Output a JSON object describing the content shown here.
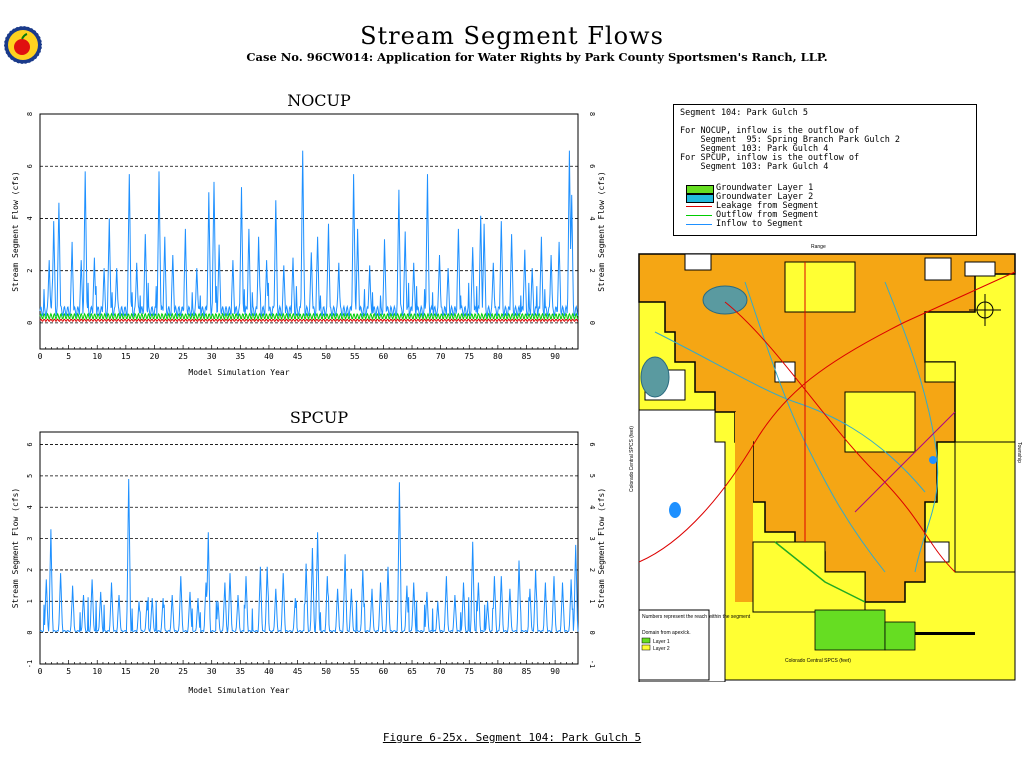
{
  "header": {
    "title": "Stream Segment Flows",
    "subtitle": "Case No. 96CW014: Application for Water Rights by Park County Sportsmen's Ranch, LLP."
  },
  "caption": "Figure 6-25x.  Segment 104: Park Gulch 5",
  "legend": {
    "lines": [
      "Segment 104: Park Gulch 5",
      "",
      "For NOCUP, inflow is the outflow of",
      "    Segment  95: Spring Branch Park Gulch 2",
      "    Segment 103: Park Gulch 4",
      "For SPCUP, inflow is the outflow of",
      "    Segment 103: Park Gulch 4"
    ],
    "items": [
      {
        "label": "Groundwater Layer 1",
        "kind": "swatch",
        "color": "#66dd22"
      },
      {
        "label": "Groundwater Layer 2",
        "kind": "swatch",
        "color": "#22bbdd"
      },
      {
        "label": "Leakage from Segment",
        "kind": "line",
        "color": "#dd0000"
      },
      {
        "label": "Outflow from Segment",
        "kind": "line",
        "color": "#00cc00"
      },
      {
        "label": "Inflow to Segment",
        "kind": "line",
        "color": "#1e90ff"
      }
    ]
  },
  "map_text": {
    "info1": "Numbers represent the reach within the segment",
    "info2": "Domain from apex/ck.",
    "layer1": "Layer 1",
    "layer2": "Layer 2",
    "top_label": "Range",
    "right_label": "Township",
    "left_label": "Colorado Central SPCS (feet)",
    "bottom_label": "Colorado Central SPCS (feet)"
  },
  "chart_data": [
    {
      "type": "line",
      "title": "NOCUP",
      "xlabel": "Model Simulation Year",
      "ylabel": "Stream Segment Flow (cfs)",
      "ylabel_right": "Stream Segment Flow (cfs)",
      "xlim": [
        0,
        94
      ],
      "ylim": [
        -1,
        8
      ],
      "xticks": [
        0,
        5,
        10,
        15,
        20,
        25,
        30,
        35,
        40,
        45,
        50,
        55,
        60,
        65,
        70,
        75,
        80,
        85,
        90
      ],
      "yticks": [
        0,
        2,
        4,
        6,
        8
      ],
      "grid": "dashed horizontal",
      "series": [
        {
          "name": "Inflow to Segment",
          "color": "#1e90ff",
          "base": 0.45,
          "peaks": [
            [
              1.6,
              2.4
            ],
            [
              2.4,
              3.9
            ],
            [
              3.3,
              4.6
            ],
            [
              5.6,
              3.1
            ],
            [
              7.2,
              2.4
            ],
            [
              7.9,
              5.8
            ],
            [
              9.5,
              2.5
            ],
            [
              11.2,
              2.1
            ],
            [
              12.1,
              4.0
            ],
            [
              13.4,
              2.1
            ],
            [
              15.6,
              5.7
            ],
            [
              16.9,
              2.3
            ],
            [
              18.4,
              3.4
            ],
            [
              20.8,
              5.8
            ],
            [
              21.8,
              3.3
            ],
            [
              23.2,
              2.6
            ],
            [
              25.4,
              3.6
            ],
            [
              27.4,
              2.1
            ],
            [
              29.5,
              5.0
            ],
            [
              30.4,
              5.4
            ],
            [
              31.3,
              3.0
            ],
            [
              33.7,
              2.4
            ],
            [
              35.2,
              5.2
            ],
            [
              36.5,
              3.6
            ],
            [
              38.2,
              3.3
            ],
            [
              39.6,
              2.4
            ],
            [
              41.2,
              4.7
            ],
            [
              42.6,
              2.2
            ],
            [
              44.2,
              2.5
            ],
            [
              45.9,
              6.6
            ],
            [
              47.4,
              2.7
            ],
            [
              48.5,
              3.3
            ],
            [
              50.4,
              3.8
            ],
            [
              52.2,
              2.3
            ],
            [
              54.8,
              5.7
            ],
            [
              55.5,
              3.6
            ],
            [
              57.6,
              2.2
            ],
            [
              60.2,
              3.2
            ],
            [
              62.7,
              5.1
            ],
            [
              63.8,
              3.5
            ],
            [
              65.3,
              2.3
            ],
            [
              67.7,
              5.7
            ],
            [
              69.8,
              2.6
            ],
            [
              71.3,
              2.1
            ],
            [
              73.1,
              3.6
            ],
            [
              75.6,
              2.9
            ],
            [
              77.0,
              4.1
            ],
            [
              77.6,
              3.8
            ],
            [
              79.2,
              2.3
            ],
            [
              80.6,
              3.9
            ],
            [
              82.4,
              3.4
            ],
            [
              84.7,
              2.8
            ],
            [
              86.0,
              2.1
            ],
            [
              87.6,
              3.3
            ],
            [
              89.3,
              2.6
            ],
            [
              90.7,
              3.1
            ],
            [
              92.5,
              6.6
            ],
            [
              92.9,
              4.9
            ]
          ]
        },
        {
          "name": "Outflow from Segment",
          "color": "#00cc00",
          "base": 0.25
        },
        {
          "name": "Leakage from Segment",
          "color": "#dd0000",
          "base": 0.1
        }
      ]
    },
    {
      "type": "line",
      "title": "SPCUP",
      "xlabel": "Model Simulation Year",
      "ylabel": "Stream Segment Flow (cfs)",
      "ylabel_right": "Stream Segment Flow (cfs)",
      "xlim": [
        0,
        94
      ],
      "ylim": [
        -1,
        6.4
      ],
      "xticks": [
        0,
        5,
        10,
        15,
        20,
        25,
        30,
        35,
        40,
        45,
        50,
        55,
        60,
        65,
        70,
        75,
        80,
        85,
        90
      ],
      "yticks": [
        -1,
        0,
        1,
        2,
        3,
        4,
        5,
        6
      ],
      "grid": "dashed horizontal",
      "series": [
        {
          "name": "Inflow to Segment",
          "color": "#1e90ff",
          "base": 0.05,
          "peaks": [
            [
              1.1,
              1.7
            ],
            [
              1.9,
              3.3
            ],
            [
              3.6,
              1.9
            ],
            [
              5.7,
              1.5
            ],
            [
              7.6,
              1.2
            ],
            [
              9.1,
              1.7
            ],
            [
              10.6,
              1.3
            ],
            [
              12.5,
              1.6
            ],
            [
              13.8,
              1.2
            ],
            [
              15.5,
              4.9
            ],
            [
              17.3,
              1.0
            ],
            [
              18.7,
              1.0
            ],
            [
              19.6,
              1.1
            ],
            [
              21.5,
              1.1
            ],
            [
              23.1,
              1.2
            ],
            [
              24.6,
              1.8
            ],
            [
              26.2,
              1.3
            ],
            [
              27.6,
              1.1
            ],
            [
              29.0,
              1.6
            ],
            [
              29.4,
              3.2
            ],
            [
              31.1,
              1.0
            ],
            [
              32.3,
              1.6
            ],
            [
              33.2,
              1.9
            ],
            [
              34.6,
              1.2
            ],
            [
              36.0,
              1.8
            ],
            [
              38.5,
              2.1
            ],
            [
              39.7,
              2.1
            ],
            [
              41.2,
              1.4
            ],
            [
              42.5,
              1.9
            ],
            [
              44.6,
              1.1
            ],
            [
              46.5,
              2.2
            ],
            [
              47.6,
              2.7
            ],
            [
              48.5,
              3.2
            ],
            [
              50.2,
              1.8
            ],
            [
              52.0,
              1.4
            ],
            [
              53.3,
              2.5
            ],
            [
              54.4,
              1.4
            ],
            [
              56.4,
              2.0
            ],
            [
              58.0,
              1.4
            ],
            [
              59.5,
              1.6
            ],
            [
              60.8,
              2.1
            ],
            [
              62.8,
              4.8
            ],
            [
              64.1,
              1.5
            ],
            [
              65.3,
              1.6
            ],
            [
              67.6,
              1.3
            ],
            [
              69.5,
              1.0
            ],
            [
              71.0,
              1.8
            ],
            [
              72.5,
              1.2
            ],
            [
              74.0,
              1.6
            ],
            [
              75.6,
              2.9
            ],
            [
              76.6,
              1.6
            ],
            [
              78.2,
              1.0
            ],
            [
              79.4,
              1.8
            ],
            [
              80.6,
              1.8
            ],
            [
              82.1,
              1.4
            ],
            [
              83.7,
              2.3
            ],
            [
              85.6,
              1.4
            ],
            [
              86.6,
              2.0
            ],
            [
              88.3,
              1.6
            ],
            [
              89.8,
              1.8
            ],
            [
              91.3,
              1.6
            ],
            [
              92.8,
              1.7
            ],
            [
              93.6,
              2.8
            ]
          ]
        }
      ]
    }
  ]
}
